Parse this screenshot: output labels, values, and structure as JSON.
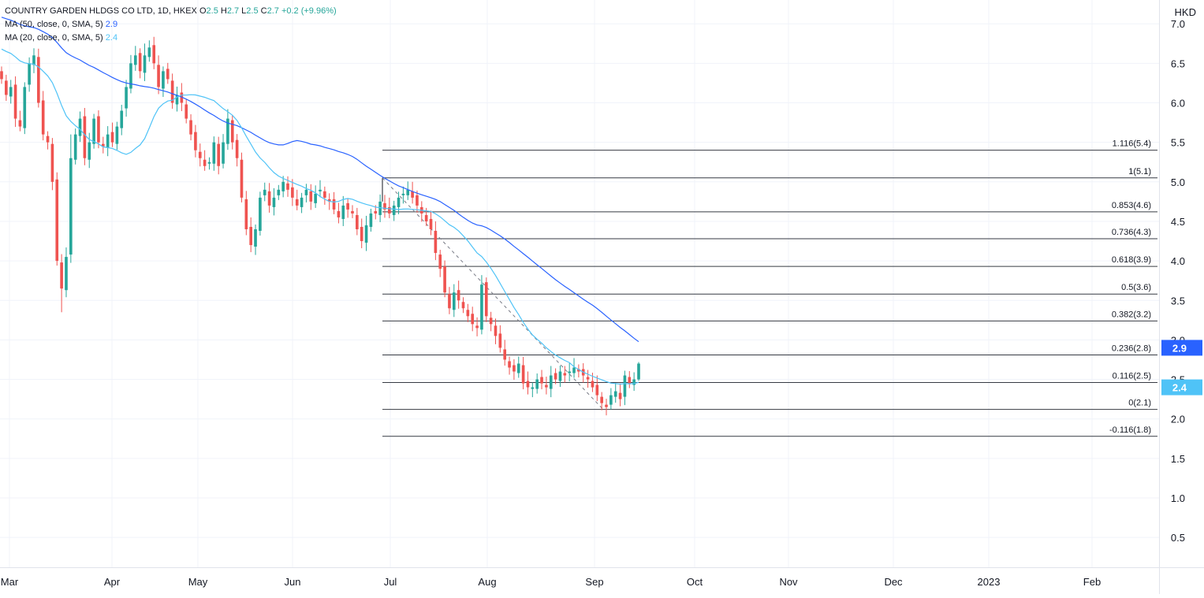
{
  "header": {
    "title": "COUNTRY GARDEN HLDGS CO LTD, 1D, HKEX",
    "ohlc": [
      {
        "label": "O",
        "value": "2.5"
      },
      {
        "label": "H",
        "value": "2.7"
      },
      {
        "label": "L",
        "value": "2.5"
      },
      {
        "label": "C",
        "value": "2.7"
      }
    ],
    "change": "+0.2 (+9.96%)",
    "ma50_label": "MA (50, close, 0, SMA, 5)",
    "ma50_value": "2.9",
    "ma20_label": "MA (20, close, 0, SMA, 5)",
    "ma20_value": "2.4"
  },
  "axis": {
    "currency": "HKD",
    "price_ticks": [
      "7.0",
      "6.5",
      "6.0",
      "5.5",
      "5.0",
      "4.5",
      "4.0",
      "3.5",
      "3.0",
      "2.5",
      "2.0",
      "1.5",
      "1.0",
      "0.5"
    ],
    "date_labels": [
      "Mar",
      "Apr",
      "May",
      "Jun",
      "Jul",
      "Aug",
      "Sep",
      "Oct",
      "Nov",
      "Dec",
      "2023",
      "Feb"
    ],
    "price_badges": [
      {
        "label": "2.9",
        "value": 2.9,
        "color": "#2962ff"
      },
      {
        "label": "2.4",
        "value": 2.4,
        "color": "#4fc3f7"
      }
    ]
  },
  "colors": {
    "up": "#26a69a",
    "down": "#ef5350",
    "ma50": "#2962ff",
    "ma20": "#4fc3f7",
    "fib": "#131722",
    "grid": "#f0f3fa"
  },
  "chart_data": {
    "type": "candlestick",
    "y_range": [
      0.3,
      7.0
    ],
    "fibonacci": [
      {
        "label": "1.116(5.4)",
        "value": 5.4
      },
      {
        "label": "1(5.1)",
        "value": 5.05
      },
      {
        "label": "0.853(4.6)",
        "value": 4.62
      },
      {
        "label": "0.736(4.3)",
        "value": 4.28
      },
      {
        "label": "0.618(3.9)",
        "value": 3.93
      },
      {
        "label": "0.5(3.6)",
        "value": 3.58
      },
      {
        "label": "0.382(3.2)",
        "value": 3.24
      },
      {
        "label": "0.236(2.8)",
        "value": 2.81
      },
      {
        "label": "0.116(2.5)",
        "value": 2.46
      },
      {
        "label": "0(2.1)",
        "value": 2.12
      },
      {
        "label": "-0.116(1.8)",
        "value": 1.78
      }
    ],
    "last_close": 2.7
  }
}
